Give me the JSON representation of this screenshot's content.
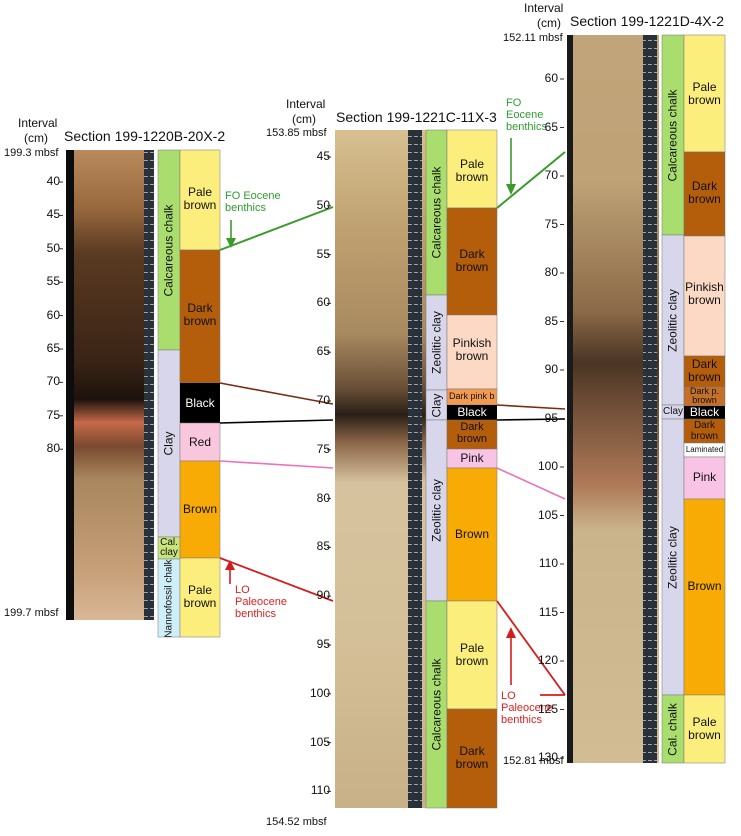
{
  "colors": {
    "pale_brown": "#fbee7d",
    "dark_brown": "#b45d0b",
    "pinkish_brown": "#fbd9c4",
    "brown": "#f9ab05",
    "black": "#000000",
    "red_clay": "#f9c7dd",
    "pink": "#f9c3e5",
    "calc_chalk": "#a9dd6d",
    "clay": "#d7d6ea",
    "nanno_chalk": "#cfeff8",
    "cal_clay": "#c8e57d",
    "fo_label": "#2f9e2f",
    "lo_label": "#e02020"
  },
  "core1": {
    "title": "Section 199-1220B-20X-2",
    "interval_label": "Interval",
    "cm_label": "(cm)",
    "top_depth": "199.3 mbsf",
    "bottom_depth": "199.7 mbsf",
    "ticks": [
      "40",
      "45",
      "50",
      "55",
      "60",
      "65",
      "70",
      "75",
      "80"
    ],
    "lith": [
      "Calcareous chalk",
      "Clay",
      "Cal. clay",
      "Nannofossil chalk"
    ],
    "colors": [
      "Pale brown",
      "Dark brown",
      "Black",
      "Red",
      "Brown",
      "Pale brown"
    ]
  },
  "core2": {
    "title": "Section 199-1221C-11X-3",
    "interval_label": "Interval",
    "cm_label": "(cm)",
    "top_depth": "153.85 mbsf",
    "bottom_depth": "154.52 mbsf",
    "ticks": [
      "45",
      "50",
      "55",
      "60",
      "65",
      "70",
      "75",
      "80",
      "85",
      "90",
      "95",
      "100",
      "105",
      "110"
    ],
    "lith": [
      "Calcareous chalk",
      "Zeolitic clay",
      "Clay",
      "Zeolitic clay",
      "Calcareous chalk"
    ],
    "colors": [
      "Pale brown",
      "Dark brown",
      "Pinkish brown",
      "Dark pink brown",
      "Black",
      "Dark brown",
      "Pink",
      "Brown",
      "Pale brown",
      "Dark brown"
    ]
  },
  "core3": {
    "title": "Section 199-1221D-4X-2",
    "interval_label": "Interval",
    "cm_label": "(cm)",
    "top_depth": "152.11 mbsf",
    "bottom_depth": "152.81 mbsf",
    "ticks": [
      "60",
      "65",
      "70",
      "75",
      "80",
      "85",
      "90",
      "95",
      "100",
      "105",
      "110",
      "115",
      "120",
      "125",
      "130"
    ],
    "lith": [
      "Calcareous chalk",
      "Zeolitic clay",
      "Clay",
      "Zeolitic clay",
      "Cal. chalk"
    ],
    "colors": [
      "Pale brown",
      "Dark brown",
      "Pinkish brown",
      "Dark brown",
      "Dark p. brown",
      "Black",
      "Dark brown",
      "Laminated",
      "Pink",
      "Brown",
      "Pale brown"
    ]
  },
  "annotations": {
    "fo1": "FO Eocene benthics",
    "lo1": "LO Paleocene benthics",
    "fo2": "FO Eocene benthics",
    "lo2": "LO Paleocene benthics"
  }
}
